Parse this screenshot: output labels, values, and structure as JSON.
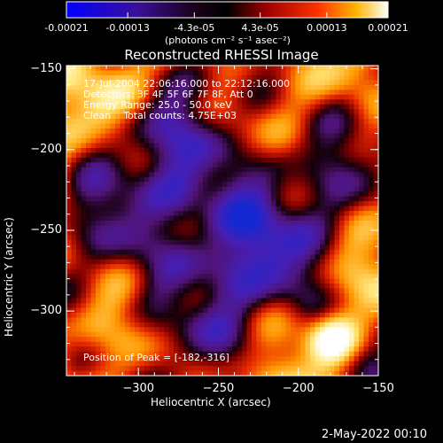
{
  "colorbar": {
    "colormap": "rainbow",
    "range": [
      -0.00021,
      0.00021
    ],
    "tick_labels": [
      "-0.00021",
      "-0.00013",
      "-4.3e-05",
      "4.3e-05",
      "0.00013",
      "0.00021"
    ],
    "tick_values": [
      -0.00021,
      -0.00013,
      -4.3e-05,
      4.3e-05,
      0.00013,
      0.00021
    ],
    "unit_label": "(photons cm⁻² s⁻¹ asec⁻²)"
  },
  "chart_data": {
    "type": "heatmap",
    "title": "Reconstructed RHESSI Image",
    "xlabel": "Heliocentric X (arcsec)",
    "ylabel": "Heliocentric Y (arcsec)",
    "xlim": [
      -345,
      -150
    ],
    "ylim": [
      -340,
      -148
    ],
    "x_ticks": [
      -300,
      -250,
      -200,
      -150
    ],
    "x_tick_labels": [
      "−300",
      "−250",
      "−200",
      "−150"
    ],
    "y_ticks": [
      -300,
      -250,
      -200,
      -150
    ],
    "y_tick_labels": [
      "−300",
      "−250",
      "−200",
      "−150"
    ],
    "peak_position": [
      -182,
      -316
    ],
    "annotations": [
      "17-Jul-2004 22:06:16.000 to 22:12:16.000",
      "Detectors: 3F 4F 5F 6F 7F 8F, Att 0",
      "Energy Range: 25.0 - 50.0 keV",
      "Clean    Total counts: 4.75E+03"
    ],
    "peak_label": "Position of Peak = [-182,-316]"
  },
  "footer": {
    "date": "2-May-2022 00:10"
  }
}
